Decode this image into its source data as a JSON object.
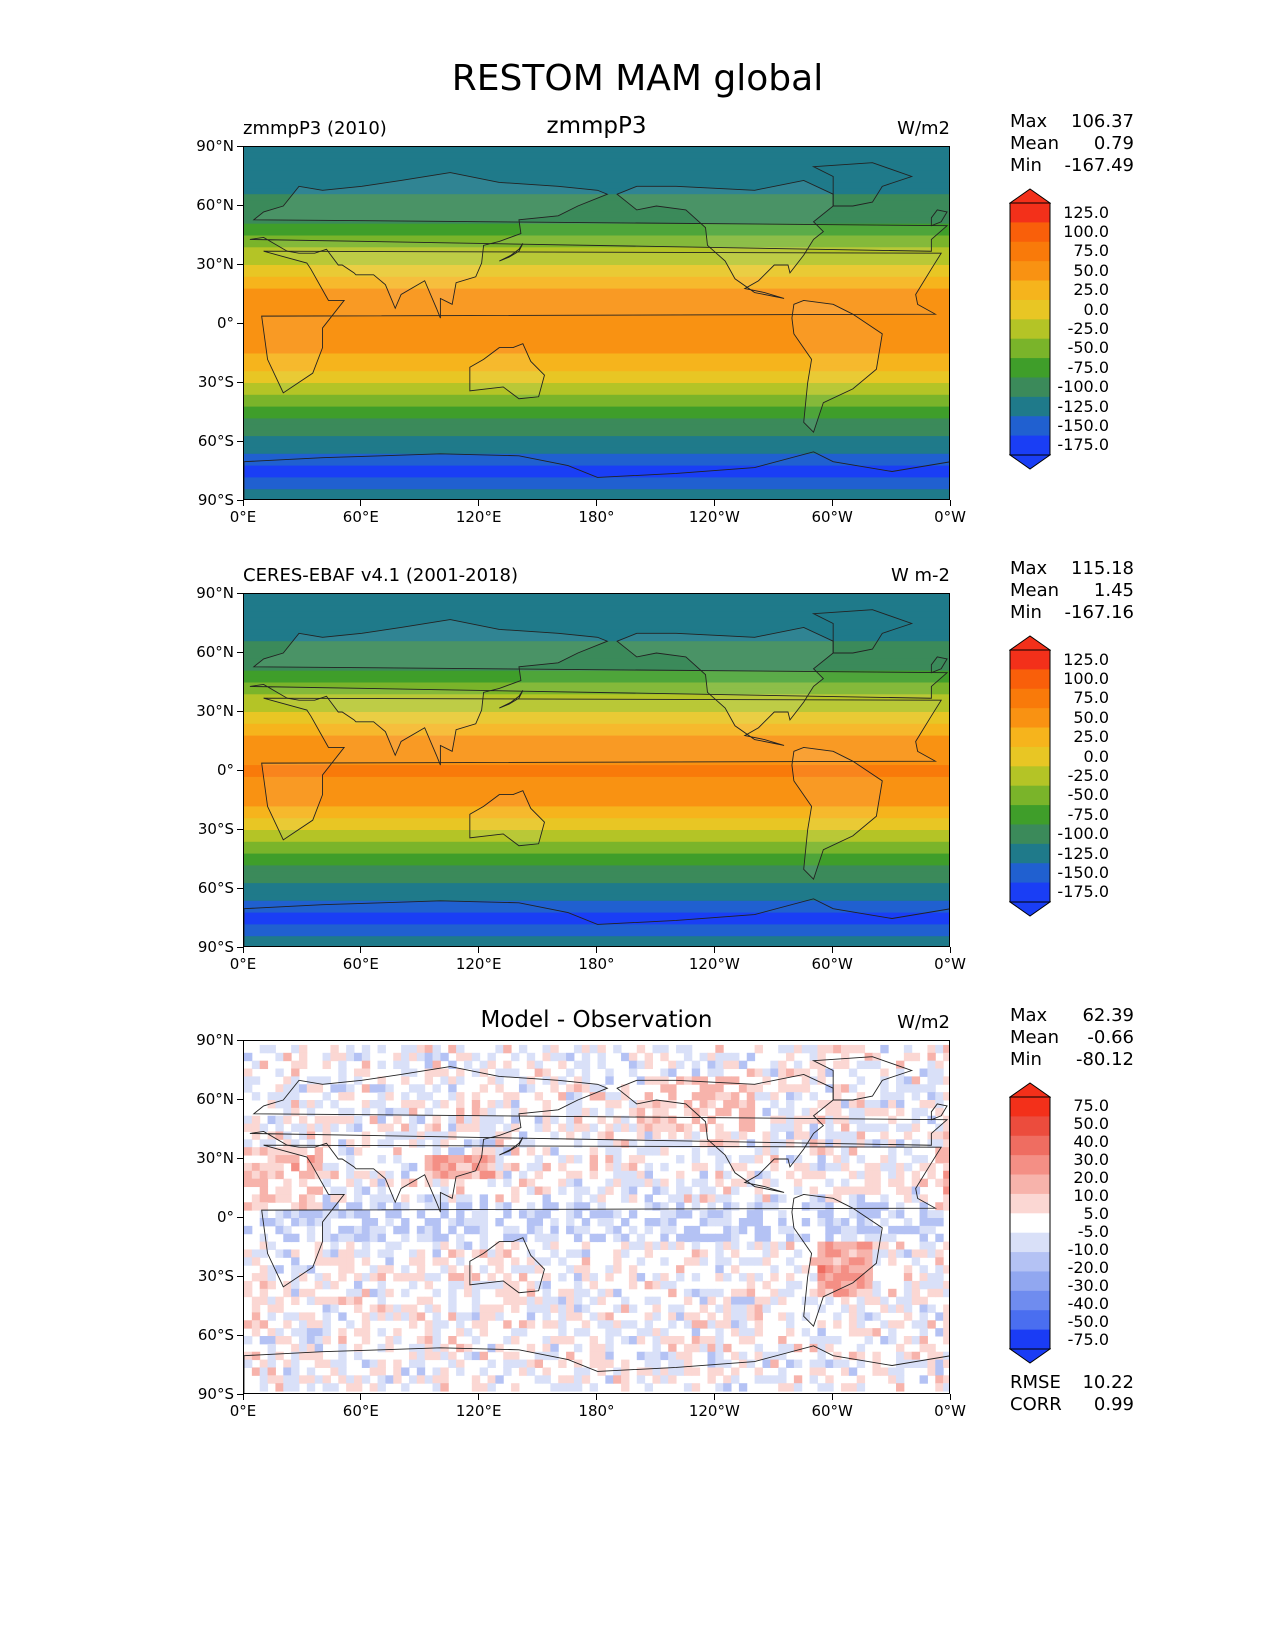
{
  "title": "RESTOM MAM global",
  "xticks": [
    "0°E",
    "60°E",
    "120°E",
    "180°",
    "120°W",
    "60°W",
    "0°W"
  ],
  "yticks": [
    "90°N",
    "60°N",
    "30°N",
    "0°",
    "30°S",
    "60°S",
    "90°S"
  ],
  "panels": [
    {
      "left_label": "zmmpP3 (2010)",
      "center_title": "zmmpP3",
      "units": "W/m2",
      "stats": {
        "max_label": "Max",
        "max": "106.37",
        "mean_label": "Mean",
        "mean": "0.79",
        "min_label": "Min",
        "min": "-167.49"
      },
      "cbar_labels": [
        "125.0",
        "100.0",
        "75.0",
        "50.0",
        "25.0",
        "0.0",
        "-25.0",
        "-50.0",
        "-75.0",
        "-100.0",
        "-125.0",
        "-150.0",
        "-175.0"
      ]
    },
    {
      "left_label": "CERES-EBAF v4.1 (2001-2018)",
      "center_title": "",
      "units": "W m-2",
      "stats": {
        "max_label": "Max",
        "max": "115.18",
        "mean_label": "Mean",
        "mean": "1.45",
        "min_label": "Min",
        "min": "-167.16"
      },
      "cbar_labels": [
        "125.0",
        "100.0",
        "75.0",
        "50.0",
        "25.0",
        "0.0",
        "-25.0",
        "-50.0",
        "-75.0",
        "-100.0",
        "-125.0",
        "-150.0",
        "-175.0"
      ]
    },
    {
      "left_label": "",
      "center_title": "Model - Observation",
      "units": "W/m2",
      "stats": {
        "max_label": "Max",
        "max": "62.39",
        "mean_label": "Mean",
        "mean": "-0.66",
        "min_label": "Min",
        "min": "-80.12"
      },
      "cbar_labels": [
        "75.0",
        "50.0",
        "40.0",
        "30.0",
        "20.0",
        "10.0",
        "5.0",
        "-5.0",
        "-10.0",
        "-20.0",
        "-30.0",
        "-40.0",
        "-50.0",
        "-75.0"
      ],
      "rmse_label": "RMSE",
      "rmse": "10.22",
      "corr_label": "CORR",
      "corr": "0.99"
    }
  ],
  "colors": {
    "climo_scale": [
      "#1a3ef5",
      "#2060d0",
      "#1f7a8a",
      "#3b8a5a",
      "#3f9e2a",
      "#7ab42a",
      "#b4c426",
      "#e8c624",
      "#f6b41c",
      "#f99212",
      "#f97a0a",
      "#f95f0a",
      "#f3301a"
    ],
    "diff_scale": [
      "#1a3cf5",
      "#4a6ef0",
      "#6f8cef",
      "#91a7f0",
      "#b4c2f4",
      "#d9e0f8",
      "#ffffff",
      "#fbd7d3",
      "#f7b3ab",
      "#f48f85",
      "#ef6d61",
      "#ec4c3d",
      "#f3301a"
    ],
    "coast": "#222222"
  },
  "chart_data": [
    {
      "type": "heatmap",
      "name": "zmmpP3",
      "xlim": [
        0,
        360
      ],
      "ylim": [
        -90,
        90
      ],
      "zonal_profile_lat": [
        -90,
        -75,
        -65,
        -55,
        -45,
        -35,
        -25,
        -15,
        0,
        15,
        25,
        35,
        45,
        55,
        65,
        80,
        90
      ],
      "zonal_profile_val": [
        -100,
        -160,
        -125,
        -95,
        -60,
        -20,
        20,
        55,
        75,
        55,
        25,
        -15,
        -55,
        -85,
        -100,
        -110,
        -110
      ],
      "levels": [
        -175,
        -150,
        -125,
        -100,
        -75,
        -50,
        -25,
        0,
        25,
        50,
        75,
        100,
        125
      ],
      "max": 106.37,
      "mean": 0.79,
      "min": -167.49
    },
    {
      "type": "heatmap",
      "name": "CERES-EBAF v4.1 (2001-2018)",
      "xlim": [
        0,
        360
      ],
      "ylim": [
        -90,
        90
      ],
      "zonal_profile_lat": [
        -90,
        -75,
        -65,
        -55,
        -45,
        -35,
        -25,
        -15,
        0,
        15,
        25,
        35,
        45,
        55,
        65,
        80,
        90
      ],
      "zonal_profile_val": [
        -100,
        -160,
        -125,
        -95,
        -60,
        -20,
        20,
        60,
        80,
        60,
        25,
        -15,
        -55,
        -85,
        -100,
        -110,
        -110
      ],
      "levels": [
        -175,
        -150,
        -125,
        -100,
        -75,
        -50,
        -25,
        0,
        25,
        50,
        75,
        100,
        125
      ],
      "max": 115.18,
      "mean": 1.45,
      "min": -167.16
    },
    {
      "type": "heatmap",
      "name": "Model - Observation",
      "xlim": [
        0,
        360
      ],
      "ylim": [
        -90,
        90
      ],
      "levels": [
        -75,
        -50,
        -40,
        -30,
        -20,
        -10,
        -5,
        5,
        10,
        20,
        30,
        40,
        50,
        75
      ],
      "max": 62.39,
      "mean": -0.66,
      "min": -80.12,
      "rmse": 10.22,
      "corr": 0.99
    }
  ]
}
